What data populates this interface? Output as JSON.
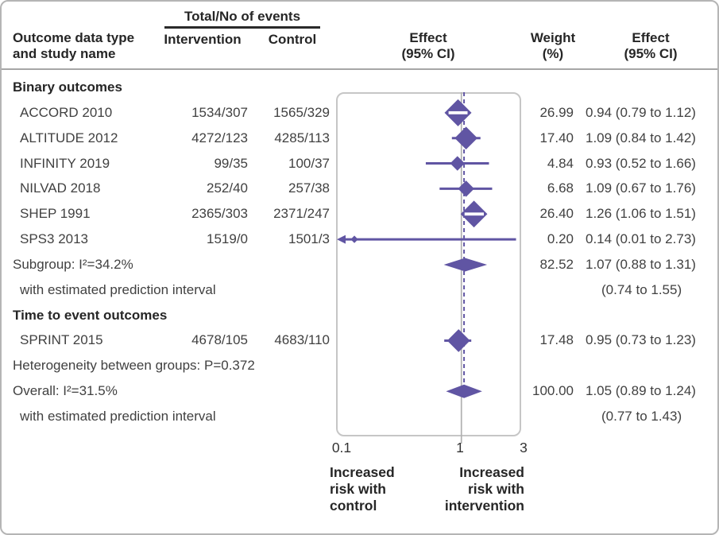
{
  "figure": {
    "header": {
      "events_header": "Total/No of events",
      "col_study": "Outcome data type and study name",
      "col_intervention": "Intervention",
      "col_control": "Control",
      "col_effect_plot": "Effect (95% CI)",
      "col_weight": "Weight (%)",
      "col_effect_text": "Effect (95% CI)"
    },
    "rows": [
      {
        "name": "Binary outcomes"
      },
      {
        "name": "ACCORD 2010",
        "intervention": "1534/307",
        "control": "1565/329",
        "weight": "26.99",
        "effect": "0.94 (0.79 to 1.12)"
      },
      {
        "name": "ALTITUDE 2012",
        "intervention": "4272/123",
        "control": "4285/113",
        "weight": "17.40",
        "effect": "1.09 (0.84 to 1.42)"
      },
      {
        "name": "INFINITY 2019",
        "intervention": "99/35",
        "control": "100/37",
        "weight": "4.84",
        "effect": "0.93 (0.52 to 1.66)"
      },
      {
        "name": "NILVAD 2018",
        "intervention": "252/40",
        "control": "257/38",
        "weight": "6.68",
        "effect": "1.09 (0.67 to 1.76)"
      },
      {
        "name": "SHEP 1991",
        "intervention": "2365/303",
        "control": "2371/247",
        "weight": "26.40",
        "effect": "1.26 (1.06 to 1.51)"
      },
      {
        "name": "SPS3 2013",
        "intervention": "1519/0",
        "control": "1501/3",
        "weight": "0.20",
        "effect": "0.14 (0.01 to 2.73)"
      },
      {
        "name": "Subgroup: I²=34.2%",
        "weight": "82.52",
        "effect": "1.07 (0.88 to 1.31)"
      },
      {
        "name": "with estimated prediction interval",
        "effect": "(0.74 to 1.55)"
      },
      {
        "name": "Time to event outcomes"
      },
      {
        "name": "SPRINT 2015",
        "intervention": "4678/105",
        "control": "4683/110",
        "weight": "17.48",
        "effect": "0.95 (0.73 to 1.23)"
      },
      {
        "name": "Heterogeneity between groups: P=0.372"
      },
      {
        "name": "Overall: I²=31.5%",
        "weight": "100.00",
        "effect": "1.05 (0.89 to 1.24)"
      },
      {
        "name": "with estimated prediction interval",
        "effect": "(0.77 to 1.43)"
      }
    ],
    "axis_ticks": [
      "0.1",
      "1",
      "3"
    ],
    "footer": {
      "left_label": "Increased risk with control",
      "right_label": "Increased risk with intervention"
    }
  },
  "chart_data": {
    "type": "forest",
    "x_scale": "log",
    "x_axis": {
      "min": 0.1,
      "max": 3,
      "null_value": 1,
      "ticks": [
        0.1,
        1,
        3
      ]
    },
    "x_label_left": "Increased risk with control",
    "x_label_right": "Increased risk with intervention",
    "heterogeneity_between_groups_p": 0.372,
    "colors": {
      "marker": "#6055a3",
      "null_line": "#b0b0b0"
    },
    "groups": [
      {
        "label": "Binary outcomes",
        "subgroup_i2": "34.2%",
        "prediction_interval": [
          0.74,
          1.55
        ]
      },
      {
        "label": "Time to event outcomes"
      }
    ],
    "overall_i2": "31.5%",
    "overall_prediction_interval": [
      0.77,
      1.43
    ],
    "marks": [
      {
        "kind": "study",
        "name": "ACCORD 2010",
        "row": 1,
        "est": 0.94,
        "lo": 0.79,
        "hi": 1.12,
        "weight": 26.99
      },
      {
        "kind": "study",
        "name": "ALTITUDE 2012",
        "row": 2,
        "est": 1.09,
        "lo": 0.84,
        "hi": 1.42,
        "weight": 17.4
      },
      {
        "kind": "study",
        "name": "INFINITY 2019",
        "row": 3,
        "est": 0.93,
        "lo": 0.52,
        "hi": 1.66,
        "weight": 4.84
      },
      {
        "kind": "study",
        "name": "NILVAD 2018",
        "row": 4,
        "est": 1.09,
        "lo": 0.67,
        "hi": 1.76,
        "weight": 6.68
      },
      {
        "kind": "study",
        "name": "SHEP 1991",
        "row": 5,
        "est": 1.26,
        "lo": 1.06,
        "hi": 1.51,
        "weight": 26.4
      },
      {
        "kind": "study",
        "name": "SPS3 2013",
        "row": 6,
        "est": 0.14,
        "lo": 0.01,
        "hi": 2.73,
        "weight": 0.2,
        "arrow_left": true
      },
      {
        "kind": "pooled",
        "name": "Subgroup",
        "row": 7,
        "est": 1.07,
        "lo": 0.88,
        "hi": 1.31,
        "weight": 82.52
      },
      {
        "kind": "study",
        "name": "SPRINT 2015",
        "row": 10,
        "est": 0.95,
        "lo": 0.73,
        "hi": 1.23,
        "weight": 17.48,
        "line_style": "dashed"
      },
      {
        "kind": "pooled",
        "name": "Overall",
        "row": 12,
        "est": 1.05,
        "lo": 0.89,
        "hi": 1.24,
        "weight": 100.0
      }
    ]
  }
}
